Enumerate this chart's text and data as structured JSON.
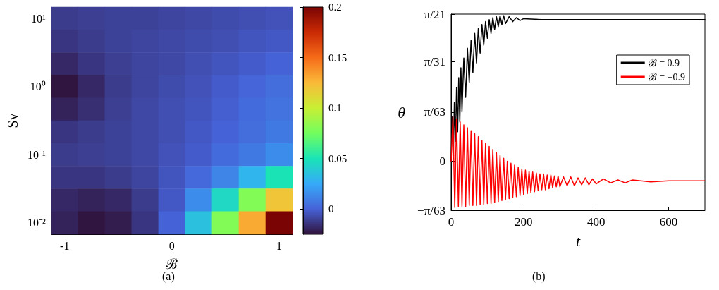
{
  "chart_data": [
    {
      "type": "heatmap",
      "xlabel": "ℬ",
      "ylabel": "Sv",
      "categories": [
        "-1",
        null,
        null,
        null,
        "0",
        null,
        null,
        null,
        "1"
      ],
      "y_categories": [
        "10¹",
        null,
        null,
        "10⁰",
        null,
        null,
        "10⁻¹",
        null,
        null,
        "10⁻²"
      ],
      "cells": [
        [
          -0.012,
          -0.011,
          -0.01,
          -0.01,
          -0.009,
          -0.008,
          -0.007,
          -0.006,
          -0.005
        ],
        [
          -0.014,
          -0.012,
          -0.01,
          -0.009,
          -0.008,
          -0.007,
          -0.006,
          -0.004,
          -0.003
        ],
        [
          -0.018,
          -0.014,
          -0.011,
          -0.009,
          -0.008,
          -0.006,
          -0.004,
          -0.002,
          0.0
        ],
        [
          -0.024,
          -0.018,
          -0.012,
          -0.009,
          -0.007,
          -0.005,
          -0.002,
          0.001,
          0.004
        ],
        [
          -0.02,
          -0.016,
          -0.011,
          -0.008,
          -0.006,
          -0.004,
          -0.001,
          0.003,
          0.006
        ],
        [
          -0.014,
          -0.012,
          -0.01,
          -0.008,
          -0.006,
          -0.003,
          0.0,
          0.004,
          0.008
        ],
        [
          -0.012,
          -0.011,
          -0.01,
          -0.008,
          -0.005,
          -0.002,
          0.003,
          0.008,
          0.015
        ],
        [
          -0.014,
          -0.014,
          -0.012,
          -0.009,
          -0.004,
          0.002,
          0.012,
          0.03,
          0.05
        ],
        [
          -0.018,
          -0.02,
          -0.018,
          -0.012,
          -0.003,
          0.015,
          0.045,
          0.08,
          0.12
        ],
        [
          -0.02,
          -0.024,
          -0.022,
          -0.014,
          0.0,
          0.035,
          0.08,
          0.13,
          0.2
        ]
      ],
      "clim": [
        -0.025,
        0.2
      ],
      "cticks": [
        0,
        0.05,
        0.1,
        0.15,
        0.2
      ],
      "annotations": [
        "(a)"
      ]
    },
    {
      "type": "line",
      "xlabel": "t",
      "ylabel": "θ",
      "xlim": [
        0,
        700
      ],
      "xticks": [
        0,
        200,
        400,
        600
      ],
      "ylim": [
        -0.0499,
        0.1496
      ],
      "yticks": [
        {
          "value": -0.0499,
          "label": "−π/63"
        },
        {
          "value": 0,
          "label": "0"
        },
        {
          "value": 0.0499,
          "label": "π/63"
        },
        {
          "value": 0.1013,
          "label": "π/31"
        },
        {
          "value": 0.1496,
          "label": "π/21"
        }
      ],
      "legend": "top right",
      "grid": false,
      "marker": "none",
      "line_style": "solid",
      "annotations": [
        "(b)"
      ],
      "series": [
        {
          "name": "ℬ = 0.9",
          "color": "#000000",
          "x": [
            0,
            3,
            6,
            9,
            12,
            15,
            18,
            21,
            24,
            27,
            30,
            35,
            40,
            45,
            50,
            55,
            60,
            65,
            70,
            75,
            80,
            85,
            90,
            95,
            100,
            105,
            110,
            115,
            120,
            125,
            130,
            135,
            140,
            145,
            150,
            160,
            170,
            180,
            190,
            200,
            250,
            700
          ],
          "values": [
            0,
            0.045,
            0.005,
            0.06,
            0.02,
            0.075,
            0.03,
            0.085,
            0.04,
            0.095,
            0.05,
            0.105,
            0.065,
            0.115,
            0.08,
            0.123,
            0.09,
            0.13,
            0.1,
            0.135,
            0.11,
            0.139,
            0.118,
            0.142,
            0.125,
            0.144,
            0.13,
            0.146,
            0.134,
            0.147,
            0.137,
            0.148,
            0.139,
            0.148,
            0.14,
            0.147,
            0.142,
            0.146,
            0.143,
            0.145,
            0.144,
            0.144
          ]
        },
        {
          "name": "ℬ = −0.9",
          "color": "#ff0000",
          "x": [
            0,
            5,
            10,
            15,
            20,
            25,
            30,
            35,
            40,
            45,
            50,
            55,
            60,
            65,
            70,
            75,
            80,
            85,
            90,
            95,
            100,
            105,
            110,
            115,
            120,
            125,
            130,
            135,
            140,
            145,
            150,
            155,
            160,
            165,
            170,
            175,
            180,
            185,
            190,
            195,
            200,
            205,
            210,
            215,
            220,
            225,
            230,
            235,
            240,
            245,
            250,
            255,
            260,
            265,
            270,
            275,
            280,
            285,
            290,
            295,
            300,
            310,
            320,
            330,
            340,
            350,
            360,
            370,
            380,
            390,
            400,
            420,
            440,
            460,
            480,
            500,
            550,
            600,
            700
          ],
          "values": [
            0,
            0.045,
            -0.047,
            0.043,
            -0.046,
            0.04,
            -0.046,
            0.037,
            -0.046,
            0.034,
            -0.045,
            0.031,
            -0.045,
            0.028,
            -0.045,
            0.025,
            -0.044,
            0.021,
            -0.044,
            0.018,
            -0.043,
            0.015,
            -0.043,
            0.012,
            -0.042,
            0.009,
            -0.041,
            0.006,
            -0.04,
            0.003,
            -0.039,
            0,
            -0.038,
            -0.002,
            -0.037,
            -0.004,
            -0.036,
            -0.006,
            -0.035,
            -0.008,
            -0.034,
            -0.009,
            -0.033,
            -0.01,
            -0.032,
            -0.011,
            -0.031,
            -0.012,
            -0.03,
            -0.013,
            -0.029,
            -0.013,
            -0.029,
            -0.014,
            -0.028,
            -0.014,
            -0.027,
            -0.015,
            -0.026,
            -0.015,
            -0.026,
            -0.016,
            -0.025,
            -0.016,
            -0.025,
            -0.017,
            -0.024,
            -0.017,
            -0.024,
            -0.018,
            -0.023,
            -0.018,
            -0.022,
            -0.019,
            -0.022,
            -0.019,
            -0.021,
            -0.02,
            -0.02
          ]
        }
      ]
    }
  ]
}
